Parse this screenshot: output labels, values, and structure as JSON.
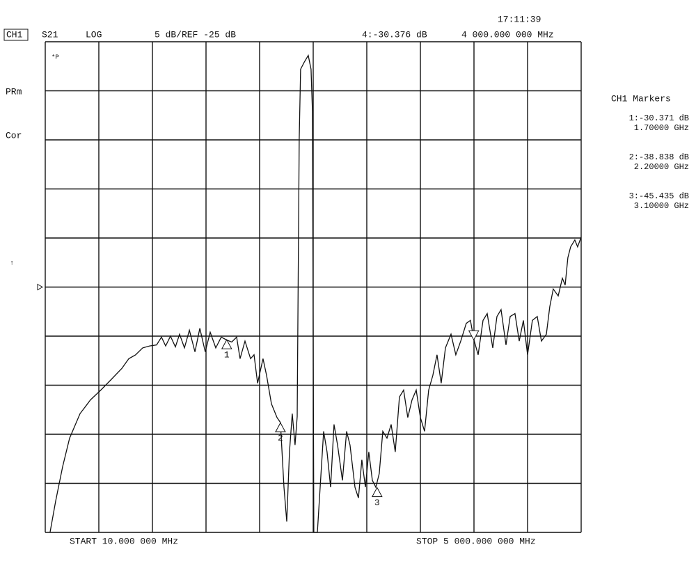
{
  "chart_data": {
    "type": "line",
    "time": "17:11:39",
    "channel": "CH1",
    "parameter": "S21",
    "format": "LOG",
    "scale_text": "5 dB/REF -25 dB",
    "ref_level": -25,
    "status": [
      "PRm",
      "Cor"
    ],
    "pointer": "↑",
    "corner_flag": "*P",
    "start_text": "START  10.000 000 MHz",
    "stop_text": "STOP 5 000.000 000 MHz",
    "markers_title": "CH1 Markers",
    "active_marker": {
      "readout": "4:-30.376 dB",
      "freq": "4 000.000 000 MHz",
      "x": 4000,
      "y": -30.376
    },
    "markers": [
      {
        "label": "1",
        "readout": "1:-30.371 dB",
        "freq": "1.70000 GHz",
        "x": 1700,
        "y": -30.371
      },
      {
        "label": "2",
        "readout": "2:-38.838 dB",
        "freq": "2.20000 GHz",
        "x": 2200,
        "y": -38.838
      },
      {
        "label": "3",
        "readout": "3:-45.435 dB",
        "freq": "3.10000 GHz",
        "x": 3100,
        "y": -45.435
      }
    ],
    "xlim": [
      10,
      5000
    ],
    "ylim": [
      -50,
      0
    ],
    "xticks": [
      10,
      509,
      1008,
      1507,
      2006,
      2505,
      3004,
      3503,
      4002,
      4501,
      5000
    ],
    "yticks": [
      0,
      -5,
      -10,
      -15,
      -20,
      -25,
      -30,
      -35,
      -40,
      -45,
      -50
    ],
    "grid": true,
    "series": [
      {
        "name": "S21",
        "color": "#111111",
        "x": [
          55,
          107,
          172,
          237,
          334,
          431,
          528,
          626,
          723,
          788,
          852,
          917,
          982,
          1047,
          1092,
          1131,
          1176,
          1222,
          1261,
          1306,
          1352,
          1404,
          1449,
          1500,
          1546,
          1598,
          1649,
          1701,
          1746,
          1792,
          1824,
          1870,
          1922,
          1954,
          1987,
          2038,
          2071,
          2116,
          2168,
          2200,
          2233,
          2259,
          2284,
          2310,
          2336,
          2356,
          2375,
          2388,
          2421,
          2459,
          2485,
          2498,
          2511,
          2544,
          2570,
          2602,
          2634,
          2667,
          2699,
          2732,
          2777,
          2816,
          2848,
          2894,
          2926,
          2958,
          2991,
          3023,
          3056,
          3088,
          3120,
          3153,
          3192,
          3231,
          3269,
          3308,
          3347,
          3386,
          3425,
          3464,
          3503,
          3542,
          3580,
          3619,
          3658,
          3697,
          3736,
          3788,
          3833,
          3879,
          3930,
          3969,
          4002,
          4041,
          4086,
          4125,
          4177,
          4216,
          4254,
          4300,
          4339,
          4384,
          4423,
          4462,
          4501,
          4546,
          4591,
          4630,
          4676,
          4708,
          4740,
          4786,
          4825,
          4851,
          4876,
          4902,
          4941,
          4967,
          5000
        ],
        "values": [
          -50,
          -46.8,
          -43.3,
          -40.4,
          -37.9,
          -36.5,
          -35.5,
          -34.4,
          -33.3,
          -32.3,
          -31.9,
          -31.2,
          -31.0,
          -30.9,
          -30.1,
          -31.0,
          -30.0,
          -31.1,
          -29.8,
          -31.2,
          -29.4,
          -31.6,
          -29.2,
          -31.6,
          -29.6,
          -31.2,
          -30.1,
          -30.4,
          -30.6,
          -30.1,
          -32.3,
          -30.5,
          -32.3,
          -31.9,
          -34.8,
          -32.3,
          -34.0,
          -36.9,
          -38.3,
          -38.8,
          -45.4,
          -48.9,
          -41.8,
          -37.9,
          -41.1,
          -38.2,
          -9.9,
          -2.8,
          -2.1,
          -1.4,
          -2.8,
          -7.1,
          -50,
          -50,
          -45.4,
          -39.7,
          -41.8,
          -45.4,
          -39.0,
          -41.1,
          -44.7,
          -39.7,
          -41.1,
          -45.4,
          -46.5,
          -42.6,
          -45.4,
          -41.8,
          -44.7,
          -45.4,
          -44.0,
          -39.7,
          -40.4,
          -39.0,
          -41.8,
          -36.2,
          -35.5,
          -38.3,
          -36.5,
          -35.5,
          -38.3,
          -39.7,
          -35.5,
          -34.0,
          -31.9,
          -34.8,
          -31.2,
          -29.8,
          -31.9,
          -30.5,
          -28.7,
          -28.4,
          -30.4,
          -31.9,
          -28.4,
          -27.7,
          -31.2,
          -28.0,
          -27.3,
          -30.9,
          -28.0,
          -27.7,
          -30.5,
          -28.4,
          -31.9,
          -28.4,
          -28.0,
          -30.5,
          -29.8,
          -27.0,
          -25.2,
          -25.9,
          -24.1,
          -24.8,
          -22.0,
          -20.9,
          -20.2,
          -20.9,
          -19.9
        ]
      }
    ]
  }
}
